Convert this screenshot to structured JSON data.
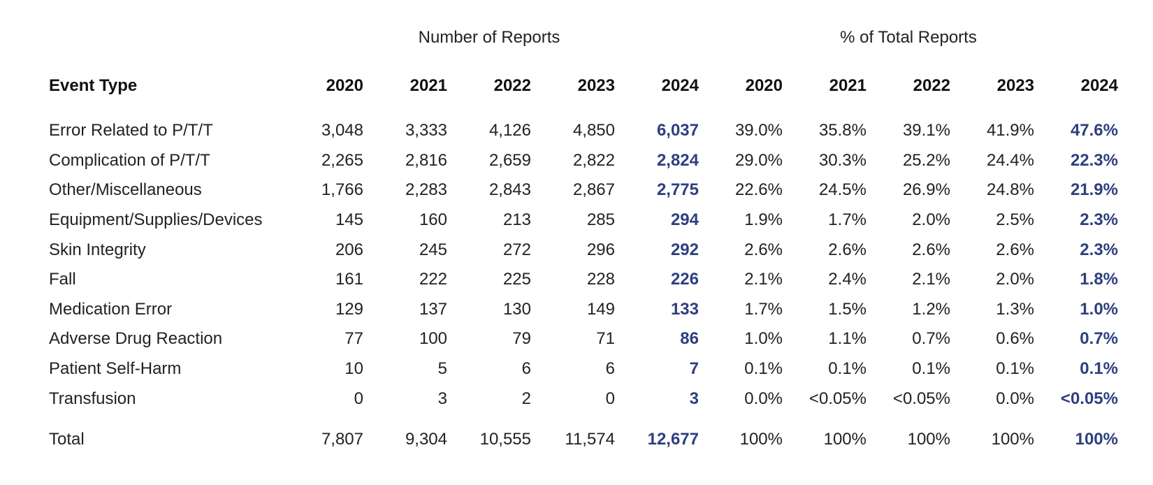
{
  "group_headers": {
    "number": "Number of Reports",
    "percent": "% of Total Reports"
  },
  "columns": {
    "label": "Event Type",
    "number_years": [
      "2020",
      "2021",
      "2022",
      "2023",
      "2024"
    ],
    "percent_years": [
      "2020",
      "2021",
      "2022",
      "2023",
      "2024"
    ]
  },
  "highlight_color": "#2e3f7f",
  "rows": [
    {
      "event_type": "Error Related to P/T/T",
      "counts": [
        "3,048",
        "3,333",
        "4,126",
        "4,850",
        "6,037"
      ],
      "percents": [
        "39.0%",
        "35.8%",
        "39.1%",
        "41.9%",
        "47.6%"
      ]
    },
    {
      "event_type": "Complication of P/T/T",
      "counts": [
        "2,265",
        "2,816",
        "2,659",
        "2,822",
        "2,824"
      ],
      "percents": [
        "29.0%",
        "30.3%",
        "25.2%",
        "24.4%",
        "22.3%"
      ]
    },
    {
      "event_type": "Other/Miscellaneous",
      "counts": [
        "1,766",
        "2,283",
        "2,843",
        "2,867",
        "2,775"
      ],
      "percents": [
        "22.6%",
        "24.5%",
        "26.9%",
        "24.8%",
        "21.9%"
      ]
    },
    {
      "event_type": "Equipment/Supplies/Devices",
      "counts": [
        "145",
        "160",
        "213",
        "285",
        "294"
      ],
      "percents": [
        "1.9%",
        "1.7%",
        "2.0%",
        "2.5%",
        "2.3%"
      ]
    },
    {
      "event_type": "Skin Integrity",
      "counts": [
        "206",
        "245",
        "272",
        "296",
        "292"
      ],
      "percents": [
        "2.6%",
        "2.6%",
        "2.6%",
        "2.6%",
        "2.3%"
      ]
    },
    {
      "event_type": "Fall",
      "counts": [
        "161",
        "222",
        "225",
        "228",
        "226"
      ],
      "percents": [
        "2.1%",
        "2.4%",
        "2.1%",
        "2.0%",
        "1.8%"
      ]
    },
    {
      "event_type": "Medication Error",
      "counts": [
        "129",
        "137",
        "130",
        "149",
        "133"
      ],
      "percents": [
        "1.7%",
        "1.5%",
        "1.2%",
        "1.3%",
        "1.0%"
      ]
    },
    {
      "event_type": "Adverse Drug Reaction",
      "counts": [
        "77",
        "100",
        "79",
        "71",
        "86"
      ],
      "percents": [
        "1.0%",
        "1.1%",
        "0.7%",
        "0.6%",
        "0.7%"
      ]
    },
    {
      "event_type": "Patient Self-Harm",
      "counts": [
        "10",
        "5",
        "6",
        "6",
        "7"
      ],
      "percents": [
        "0.1%",
        "0.1%",
        "0.1%",
        "0.1%",
        "0.1%"
      ]
    },
    {
      "event_type": "Transfusion",
      "counts": [
        "0",
        "3",
        "2",
        "0",
        "3"
      ],
      "percents": [
        "0.0%",
        "<0.05%",
        "<0.05%",
        "0.0%",
        "<0.05%"
      ]
    }
  ],
  "total": {
    "label": "Total",
    "counts": [
      "7,807",
      "9,304",
      "10,555",
      "11,574",
      "12,677"
    ],
    "percents": [
      "100%",
      "100%",
      "100%",
      "100%",
      "100%"
    ]
  }
}
